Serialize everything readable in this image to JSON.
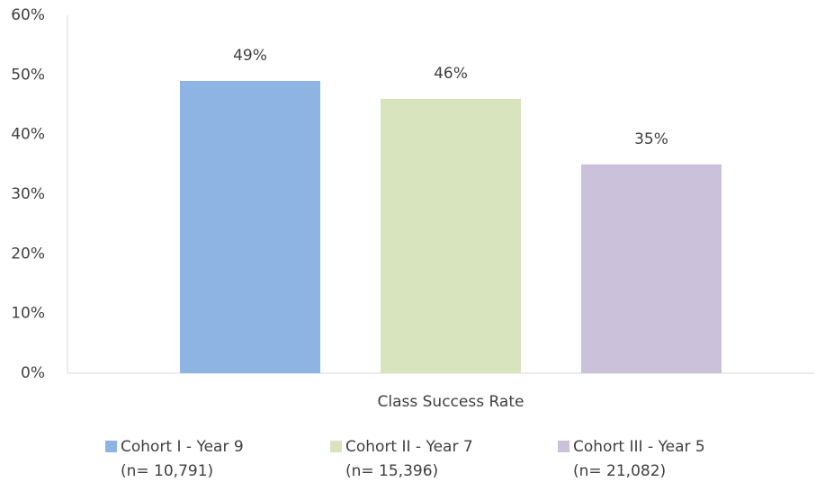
{
  "chart_data": {
    "type": "bar",
    "categories": [
      "Class Success Rate"
    ],
    "series": [
      {
        "name": "Cohort I - Year 9\n(n= 10,791)",
        "color": "#8eb4e3",
        "values": [
          49
        ],
        "value_labels": [
          "49%"
        ]
      },
      {
        "name": "Cohort II - Year 7\n(n= 15,396)",
        "color": "#d7e4bd",
        "values": [
          46
        ],
        "value_labels": [
          "46%"
        ]
      },
      {
        "name": "Cohort III - Year 5\n(n= 21,082)",
        "color": "#ccc1da",
        "values": [
          35
        ],
        "value_labels": [
          "35%"
        ]
      }
    ],
    "ylim": [
      0,
      60
    ],
    "yticks": [
      {
        "value": 0,
        "label": "0%"
      },
      {
        "value": 10,
        "label": "10%"
      },
      {
        "value": 20,
        "label": "20%"
      },
      {
        "value": 30,
        "label": "30%"
      },
      {
        "value": 40,
        "label": "40%"
      },
      {
        "value": 50,
        "label": "50%"
      },
      {
        "value": 60,
        "label": "60%"
      }
    ],
    "grid": false,
    "legend": "bottom"
  }
}
